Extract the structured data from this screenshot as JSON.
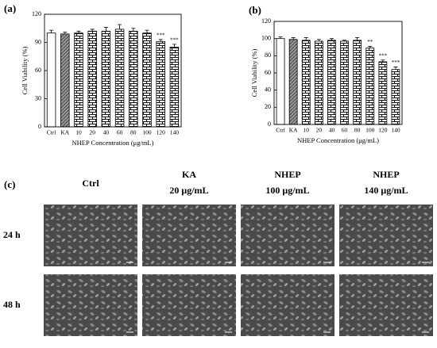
{
  "chart_data": [
    {
      "type": "bar",
      "panel": "(a)",
      "x_label": "NHEP Concentration (μg/mL)",
      "y_label": "Cell Viability (%)",
      "categories": [
        "Ctrl",
        "KA",
        "10",
        "20",
        "40",
        "60",
        "80",
        "100",
        "120",
        "140"
      ],
      "values": [
        100,
        99,
        100,
        102,
        102,
        104,
        102,
        100,
        91,
        85
      ],
      "errors": [
        3,
        2,
        2,
        2,
        4,
        5,
        3,
        3,
        2,
        3
      ],
      "annotations": [
        null,
        null,
        null,
        null,
        null,
        null,
        null,
        null,
        "***",
        "***"
      ],
      "patterns": [
        "plain",
        "hatch",
        "brick",
        "brick",
        "brick",
        "brick",
        "brick",
        "brick",
        "brick",
        "brick"
      ],
      "ylim": [
        0,
        120
      ],
      "yticks": [
        0,
        30,
        60,
        90,
        120
      ]
    },
    {
      "type": "bar",
      "panel": "(b)",
      "x_label": "NHEP Concentration (μg/mL)",
      "y_label": "Cell Viability (%)",
      "categories": [
        "Ctrl",
        "KA",
        "10",
        "20",
        "40",
        "60",
        "80",
        "100",
        "120",
        "140"
      ],
      "values": [
        100,
        99,
        98,
        97,
        98,
        97,
        98,
        89,
        73,
        64
      ],
      "errors": [
        2,
        2,
        3,
        2,
        2,
        1,
        3,
        2,
        2,
        3
      ],
      "annotations": [
        null,
        null,
        null,
        null,
        null,
        null,
        null,
        "**",
        "***",
        "***"
      ],
      "patterns": [
        "plain",
        "hatch",
        "brick",
        "brick",
        "brick",
        "brick",
        "brick",
        "brick",
        "brick",
        "brick"
      ],
      "ylim": [
        0,
        120
      ],
      "yticks": [
        0,
        20,
        40,
        60,
        80,
        100,
        120
      ]
    }
  ],
  "panel_c": {
    "label": "(c)",
    "columns": [
      [
        "Ctrl"
      ],
      [
        "KA",
        "20 μg/mL"
      ],
      [
        "NHEP",
        "100 μg/mL"
      ],
      [
        "NHEP",
        "140 μg/mL"
      ]
    ],
    "rows": [
      "24 h",
      "48 h"
    ]
  }
}
